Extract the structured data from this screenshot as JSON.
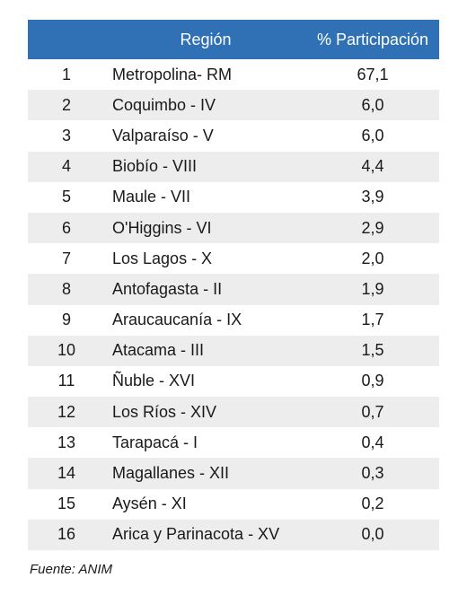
{
  "table": {
    "headers": {
      "num": "",
      "region": "Región",
      "pct": "% Participación"
    },
    "rows": [
      {
        "num": "1",
        "region": "Metropolina- RM",
        "pct": "67,1"
      },
      {
        "num": "2",
        "region": "Coquimbo - IV",
        "pct": "6,0"
      },
      {
        "num": "3",
        "region": "Valparaíso - V",
        "pct": "6,0"
      },
      {
        "num": "4",
        "region": "Biobío - VIII",
        "pct": "4,4"
      },
      {
        "num": "5",
        "region": "Maule - VII",
        "pct": "3,9"
      },
      {
        "num": "6",
        "region": "O'Higgins - VI",
        "pct": "2,9"
      },
      {
        "num": "7",
        "region": "Los Lagos - X",
        "pct": "2,0"
      },
      {
        "num": "8",
        "region": "Antofagasta - II",
        "pct": "1,9"
      },
      {
        "num": "9",
        "region": "Araucaucanía - IX",
        "pct": "1,7"
      },
      {
        "num": "10",
        "region": "Atacama - III",
        "pct": "1,5"
      },
      {
        "num": "11",
        "region": "Ñuble - XVI",
        "pct": "0,9"
      },
      {
        "num": "12",
        "region": "Los Ríos - XIV",
        "pct": "0,7"
      },
      {
        "num": "13",
        "region": "Tarapacá - I",
        "pct": "0,4"
      },
      {
        "num": "14",
        "region": "Magallanes - XII",
        "pct": "0,3"
      },
      {
        "num": "15",
        "region": "Aysén - XI",
        "pct": "0,2"
      },
      {
        "num": "16",
        "region": "Arica y Parinacota - XV",
        "pct": "0,0"
      }
    ]
  },
  "source": "Fuente: ANIM",
  "colors": {
    "header_bg": "#2f71b4",
    "stripe_bg": "#ededed"
  }
}
